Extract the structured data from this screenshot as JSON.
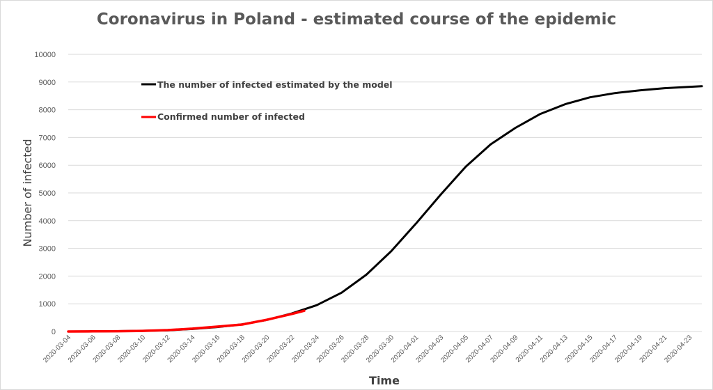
{
  "chart_data": {
    "type": "line",
    "title": "Coronavirus in Poland - estimated course of the epidemic",
    "xlabel": "Time",
    "ylabel": "Number of infected",
    "ylim": [
      0,
      10000
    ],
    "yticks": [
      0,
      1000,
      2000,
      3000,
      4000,
      5000,
      6000,
      7000,
      8000,
      9000,
      10000
    ],
    "x_start": "2020-03-04",
    "x_end": "2020-04-24",
    "xticks": [
      "2020-03-04",
      "2020-03-06",
      "2020-03-08",
      "2020-03-10",
      "2020-03-12",
      "2020-03-14",
      "2020-03-16",
      "2020-03-18",
      "2020-03-20",
      "2020-03-22",
      "2020-03-24",
      "2020-03-26",
      "2020-03-28",
      "2020-03-30",
      "2020-04-01",
      "2020-04-03",
      "2020-04-05",
      "2020-04-07",
      "2020-04-09",
      "2020-04-11",
      "2020-04-13",
      "2020-04-15",
      "2020-04-17",
      "2020-04-19",
      "2020-04-21",
      "2020-04-23"
    ],
    "grid": "horizontal",
    "legend_position": "top-left",
    "series": [
      {
        "name": "The number of infected estimated by the model",
        "color": "#000000",
        "x": [
          "2020-03-04",
          "2020-03-06",
          "2020-03-08",
          "2020-03-10",
          "2020-03-12",
          "2020-03-14",
          "2020-03-16",
          "2020-03-18",
          "2020-03-20",
          "2020-03-22",
          "2020-03-24",
          "2020-03-26",
          "2020-03-28",
          "2020-03-30",
          "2020-04-01",
          "2020-04-03",
          "2020-04-05",
          "2020-04-07",
          "2020-04-09",
          "2020-04-11",
          "2020-04-13",
          "2020-04-15",
          "2020-04-17",
          "2020-04-19",
          "2020-04-21",
          "2020-04-24"
        ],
        "values": [
          0,
          5,
          12,
          25,
          45,
          90,
          160,
          260,
          420,
          650,
          950,
          1400,
          2050,
          2900,
          3900,
          4950,
          5950,
          6750,
          7350,
          7850,
          8200,
          8450,
          8600,
          8700,
          8780,
          8850
        ]
      },
      {
        "name": "Confirmed number of infected",
        "color": "#ff0000",
        "x": [
          "2020-03-04",
          "2020-03-06",
          "2020-03-08",
          "2020-03-10",
          "2020-03-12",
          "2020-03-14",
          "2020-03-16",
          "2020-03-18",
          "2020-03-20",
          "2020-03-22",
          "2020-03-23"
        ],
        "values": [
          1,
          5,
          11,
          22,
          49,
          103,
          177,
          251,
          425,
          634,
          749
        ]
      }
    ]
  }
}
